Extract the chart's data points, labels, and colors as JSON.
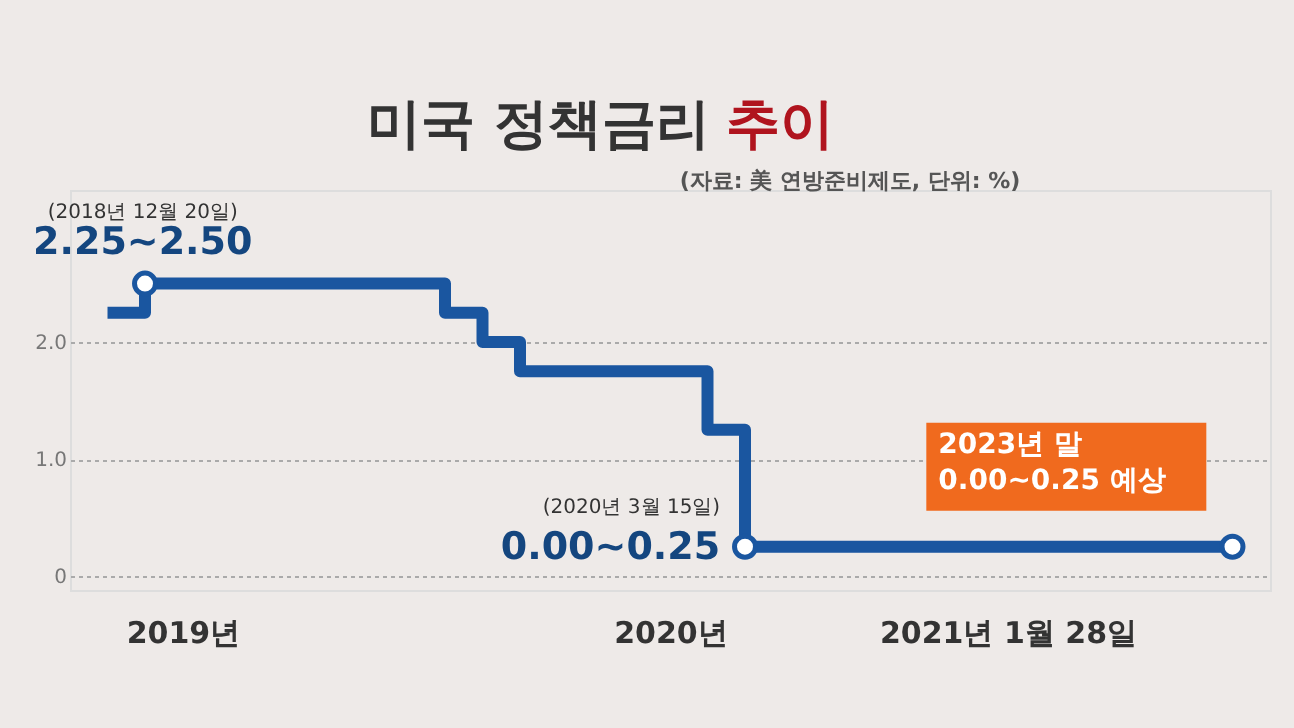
{
  "chart_data": {
    "type": "step",
    "title": "미국 정책금리 추이",
    "subtitle": "(자료: 美 연방준비제도, 단위: %)",
    "categories": [
      null,
      null,
      "2019년",
      null,
      null,
      null,
      null,
      null,
      null,
      null,
      null,
      null,
      null,
      null,
      null,
      "2020년",
      null,
      null,
      null,
      null,
      null,
      null,
      null,
      null,
      "2021년 1월 28일",
      null,
      null,
      null,
      null,
      null,
      null
    ],
    "series": [
      {
        "color": "#1a56a0",
        "values": [
          2.25,
          2.5,
          2.5,
          2.5,
          2.5,
          2.5,
          2.5,
          2.5,
          2.5,
          2.25,
          2.0,
          1.75,
          1.75,
          1.75,
          1.75,
          1.75,
          1.25,
          0.25,
          0.25,
          0.25,
          0.25,
          0.25,
          0.25,
          0.25,
          0.25,
          0.25,
          0.25,
          0.25,
          0.25,
          0.25,
          0.25
        ]
      }
    ],
    "ylim": [
      -0.12,
      3.3
    ],
    "yticks": [
      0,
      {
        "value": 1,
        "label": "1.0"
      },
      {
        "value": 2,
        "label": "2.0"
      }
    ],
    "grid": "y",
    "annotations": [
      "(2018년 12월 20일)",
      "2.25~2.50",
      "(2020년 3월 15일)",
      "0.00~0.25",
      "2023년 말\n0.00~0.25 예상"
    ]
  }
}
